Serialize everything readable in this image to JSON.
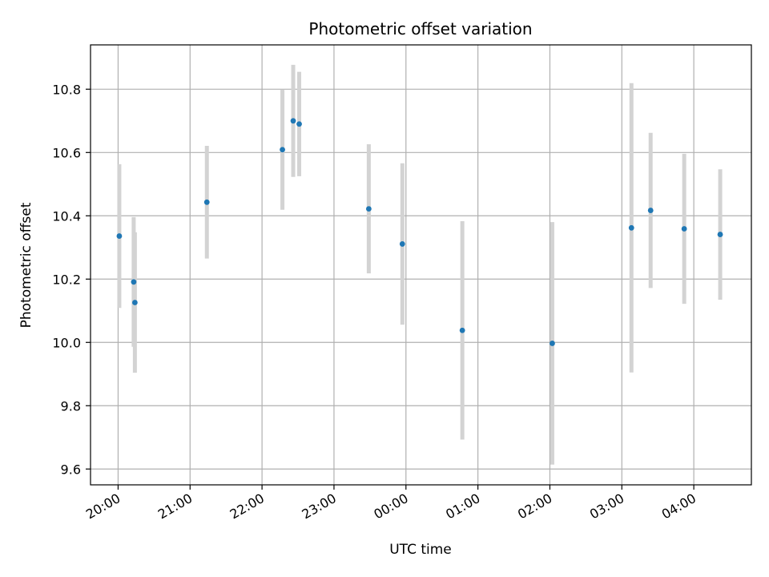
{
  "chart_data": {
    "type": "scatter",
    "title": "Photometric offset variation",
    "xlabel": "UTC time",
    "ylabel": "Photometric offset",
    "grid": true,
    "xlim": [
      "19:37",
      "04:48"
    ],
    "ylim": [
      9.55,
      10.94
    ],
    "x_ticks": [
      "20:00",
      "21:00",
      "22:00",
      "23:00",
      "00:00",
      "01:00",
      "02:00",
      "03:00",
      "04:00"
    ],
    "y_ticks": [
      "9.6",
      "9.8",
      "10.0",
      "10.2",
      "10.4",
      "10.6",
      "10.8"
    ],
    "colors": {
      "point": "#1f77b4",
      "errorbar": "#d3d3d3",
      "grid": "#b0b0b0"
    },
    "points": [
      {
        "x": "20:01",
        "y": 10.336,
        "err": 0.227
      },
      {
        "x": "20:13",
        "y": 10.191,
        "err": 0.205
      },
      {
        "x": "20:14",
        "y": 10.126,
        "err": 0.222
      },
      {
        "x": "21:14",
        "y": 10.443,
        "err": 0.178
      },
      {
        "x": "22:17",
        "y": 10.609,
        "err": 0.19
      },
      {
        "x": "22:26",
        "y": 10.7,
        "err": 0.177
      },
      {
        "x": "22:31",
        "y": 10.69,
        "err": 0.165
      },
      {
        "x": "23:29",
        "y": 10.422,
        "err": 0.204
      },
      {
        "x": "23:57",
        "y": 10.311,
        "err": 0.255
      },
      {
        "x": "00:47",
        "y": 10.038,
        "err": 0.345
      },
      {
        "x": "02:02",
        "y": 9.997,
        "err": 0.383
      },
      {
        "x": "03:08",
        "y": 10.362,
        "err": 0.457
      },
      {
        "x": "03:24",
        "y": 10.417,
        "err": 0.245
      },
      {
        "x": "03:52",
        "y": 10.359,
        "err": 0.237
      },
      {
        "x": "04:22",
        "y": 10.341,
        "err": 0.206
      }
    ]
  }
}
